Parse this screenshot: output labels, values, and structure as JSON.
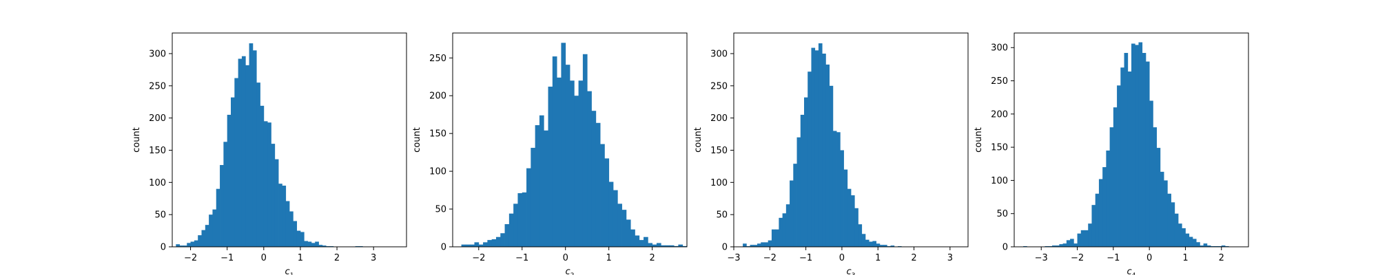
{
  "chart_data": [
    {
      "type": "bar",
      "xlabel": "c",
      "xlabel_subscript": "1",
      "ylabel": "count",
      "xlim": [
        -2.5,
        3.9
      ],
      "ylim": [
        0,
        332
      ],
      "xticks": [
        -2,
        -1,
        0,
        1,
        2,
        3
      ],
      "yticks": [
        0,
        50,
        100,
        150,
        200,
        250,
        300
      ],
      "xtick_labels": [
        "−2",
        "−1",
        "0",
        "1",
        "2",
        "3"
      ],
      "ytick_labels": [
        "0",
        "50",
        "100",
        "150",
        "200",
        "250",
        "300"
      ],
      "bin_start": -2.4,
      "bin_width": 0.1,
      "values": [
        4,
        2,
        2,
        6,
        8,
        10,
        18,
        26,
        34,
        50,
        58,
        90,
        127,
        163,
        205,
        232,
        262,
        292,
        296,
        282,
        316,
        305,
        255,
        219,
        195,
        193,
        160,
        136,
        98,
        95,
        71,
        55,
        40,
        25,
        23,
        9,
        8,
        6,
        8,
        3,
        2,
        1,
        1,
        0,
        0,
        0,
        0,
        0,
        0,
        1,
        1,
        0
      ],
      "color": "#1f77b4",
      "grid": false
    },
    {
      "type": "bar",
      "xlabel": "c",
      "xlabel_subscript": "2",
      "ylabel": "count",
      "xlim": [
        -2.6,
        2.8
      ],
      "ylim": [
        0,
        283
      ],
      "xticks": [
        -2,
        -1,
        0,
        1,
        2
      ],
      "yticks": [
        0,
        50,
        100,
        150,
        200,
        250
      ],
      "xtick_labels": [
        "−2",
        "−1",
        "0",
        "1",
        "2"
      ],
      "ytick_labels": [
        "0",
        "50",
        "100",
        "150",
        "200",
        "250"
      ],
      "bin_start": -2.4,
      "bin_width": 0.1,
      "values": [
        3,
        3,
        3,
        6,
        3,
        6,
        9,
        10,
        13,
        18,
        30,
        44,
        57,
        71,
        72,
        104,
        131,
        161,
        174,
        154,
        212,
        252,
        224,
        270,
        241,
        220,
        200,
        220,
        255,
        206,
        180,
        164,
        136,
        117,
        86,
        75,
        57,
        49,
        36,
        23,
        15,
        9,
        13,
        5,
        3,
        5,
        2,
        2,
        2,
        1,
        3,
        1
      ],
      "color": "#1f77b4",
      "grid": false
    },
    {
      "type": "bar",
      "xlabel": "c",
      "xlabel_subscript": "3",
      "ylabel": "count",
      "xlim": [
        -3.0,
        3.5
      ],
      "ylim": [
        0,
        332
      ],
      "xticks": [
        -3,
        -2,
        -1,
        0,
        1,
        2,
        3
      ],
      "yticks": [
        0,
        50,
        100,
        150,
        200,
        250,
        300
      ],
      "xtick_labels": [
        "−3",
        "−2",
        "−1",
        "0",
        "1",
        "2",
        "3"
      ],
      "ytick_labels": [
        "0",
        "50",
        "100",
        "150",
        "200",
        "250",
        "300"
      ],
      "bin_start": -2.75,
      "bin_width": 0.1,
      "values": [
        5,
        1,
        3,
        3,
        5,
        7,
        7,
        10,
        27,
        27,
        45,
        52,
        66,
        103,
        129,
        170,
        205,
        232,
        272,
        309,
        305,
        316,
        300,
        283,
        250,
        180,
        178,
        150,
        120,
        90,
        80,
        60,
        35,
        20,
        11,
        8,
        9,
        5,
        3,
        3,
        1,
        2,
        0,
        1
      ],
      "color": "#1f77b4",
      "grid": false
    },
    {
      "type": "bar",
      "xlabel": "c",
      "xlabel_subscript": "4",
      "ylabel": "count",
      "xlim": [
        -3.75,
        2.75
      ],
      "ylim": [
        0,
        322
      ],
      "xticks": [
        -3,
        -2,
        -1,
        0,
        1,
        2
      ],
      "yticks": [
        0,
        50,
        100,
        150,
        200,
        250,
        300
      ],
      "xtick_labels": [
        "−3",
        "−2",
        "−1",
        "0",
        "1",
        "2"
      ],
      "ytick_labels": [
        "0",
        "50",
        "100",
        "150",
        "200",
        "250",
        "300"
      ],
      "bin_start": -3.5,
      "bin_width": 0.1,
      "values": [
        1,
        0,
        0,
        0,
        0,
        0,
        1,
        1,
        2,
        2,
        4,
        5,
        10,
        12,
        5,
        20,
        25,
        25,
        35,
        63,
        80,
        102,
        120,
        145,
        180,
        210,
        243,
        270,
        292,
        264,
        306,
        304,
        308,
        292,
        279,
        220,
        180,
        149,
        113,
        100,
        80,
        67,
        50,
        35,
        28,
        20,
        15,
        12,
        7,
        2,
        5,
        2,
        1,
        1,
        1,
        2,
        1
      ],
      "color": "#1f77b4",
      "grid": false
    }
  ]
}
